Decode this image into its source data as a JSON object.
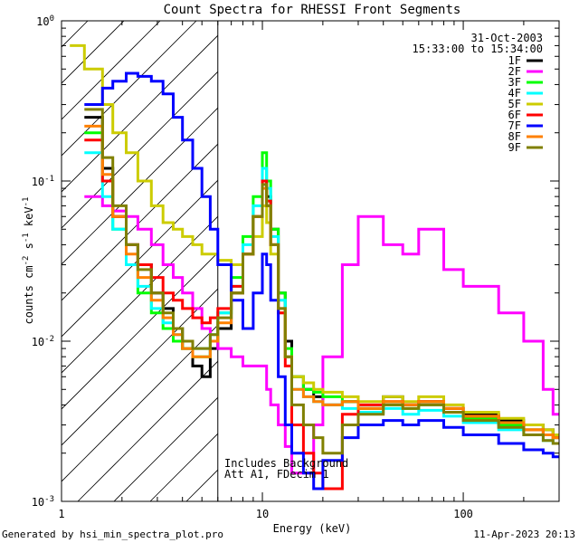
{
  "chart_data": {
    "type": "line",
    "title": "Count Spectra for RHESSI Front Segments",
    "xlabel": "Energy (keV)",
    "ylabel_parts": [
      "counts cm",
      "-2",
      " s",
      "-1",
      " keV",
      "-1"
    ],
    "xscale": "log",
    "yscale": "log",
    "xlim": [
      1,
      300
    ],
    "ylim": [
      0.001,
      1
    ],
    "x_ticks": [
      {
        "value": 1,
        "label": "1"
      },
      {
        "value": 10,
        "label": "10"
      },
      {
        "value": 100,
        "label": "100"
      }
    ],
    "y_ticks": [
      {
        "value": 1,
        "label": "10",
        "exp": "0"
      },
      {
        "value": 0.1,
        "label": "10",
        "exp": "-1"
      },
      {
        "value": 0.01,
        "label": "10",
        "exp": "-2"
      },
      {
        "value": 0.001,
        "label": "10",
        "exp": "-3"
      }
    ],
    "hatch_region": [
      1,
      6
    ],
    "date": "31-Oct-2003",
    "time_range": "15:33:00 to 15:34:00",
    "annotations": [
      "Includes Background",
      "Att A1, FDecim 1"
    ],
    "series": [
      {
        "name": "1F",
        "color": "#000000",
        "x": [
          1.3,
          1.6,
          1.8,
          2.1,
          2.4,
          2.8,
          3.2,
          3.6,
          4.0,
          4.5,
          5.0,
          5.5,
          6.0,
          7.0,
          8.0,
          9.0,
          10.0,
          10.5,
          11.0,
          12.0,
          13.0,
          14.0,
          16.0,
          18.0,
          20.0,
          25.0,
          30.0,
          40.0,
          50.0,
          60.0,
          80.0,
          100.0,
          150.0,
          200.0,
          250.0,
          280.0
        ],
        "y": [
          0.25,
          0.12,
          0.06,
          0.04,
          0.03,
          0.02,
          0.016,
          0.012,
          0.009,
          0.007,
          0.006,
          0.009,
          0.012,
          0.02,
          0.035,
          0.06,
          0.1,
          0.08,
          0.05,
          0.02,
          0.01,
          0.006,
          0.005,
          0.0045,
          0.004,
          0.0042,
          0.0038,
          0.0045,
          0.004,
          0.0042,
          0.0038,
          0.0035,
          0.0032,
          0.003,
          0.0028,
          0.0026
        ]
      },
      {
        "name": "2F",
        "color": "#ff00ff",
        "x": [
          1.3,
          1.6,
          1.8,
          2.1,
          2.4,
          2.8,
          3.2,
          3.6,
          4.0,
          4.5,
          5.0,
          5.5,
          6.0,
          7.0,
          8.0,
          9.0,
          10.0,
          10.5,
          11.0,
          12.0,
          13.0,
          14.0,
          16.0,
          18.0,
          20.0,
          25.0,
          30.0,
          40.0,
          50.0,
          60.0,
          80.0,
          100.0,
          150.0,
          200.0,
          250.0,
          280.0
        ],
        "y": [
          0.08,
          0.07,
          0.065,
          0.06,
          0.05,
          0.04,
          0.03,
          0.025,
          0.02,
          0.016,
          0.012,
          0.01,
          0.009,
          0.008,
          0.007,
          0.007,
          0.007,
          0.005,
          0.004,
          0.003,
          0.0022,
          0.0015,
          0.0015,
          0.003,
          0.008,
          0.03,
          0.06,
          0.04,
          0.035,
          0.05,
          0.028,
          0.022,
          0.015,
          0.01,
          0.005,
          0.0035
        ]
      },
      {
        "name": "3F",
        "color": "#00ff00",
        "x": [
          1.3,
          1.6,
          1.8,
          2.1,
          2.4,
          2.8,
          3.2,
          3.6,
          4.0,
          4.5,
          5.0,
          5.5,
          6.0,
          7.0,
          8.0,
          9.0,
          10.0,
          10.5,
          11.0,
          12.0,
          13.0,
          14.0,
          16.0,
          18.0,
          20.0,
          25.0,
          30.0,
          40.0,
          50.0,
          60.0,
          80.0,
          100.0,
          150.0,
          200.0,
          250.0,
          280.0
        ],
        "y": [
          0.2,
          0.1,
          0.05,
          0.03,
          0.02,
          0.015,
          0.012,
          0.01,
          0.009,
          0.008,
          0.008,
          0.01,
          0.015,
          0.025,
          0.045,
          0.08,
          0.15,
          0.1,
          0.05,
          0.02,
          0.009,
          0.006,
          0.005,
          0.0048,
          0.0045,
          0.0042,
          0.0038,
          0.004,
          0.0038,
          0.004,
          0.0036,
          0.0033,
          0.003,
          0.0028,
          0.0026,
          0.0025
        ]
      },
      {
        "name": "4F",
        "color": "#00ffff",
        "x": [
          1.3,
          1.6,
          1.8,
          2.1,
          2.4,
          2.8,
          3.2,
          3.6,
          4.0,
          4.5,
          5.0,
          5.5,
          6.0,
          7.0,
          8.0,
          9.0,
          10.0,
          10.5,
          11.0,
          12.0,
          13.0,
          14.0,
          16.0,
          18.0,
          20.0,
          25.0,
          30.0,
          40.0,
          50.0,
          60.0,
          80.0,
          100.0,
          150.0,
          200.0,
          250.0,
          280.0
        ],
        "y": [
          0.15,
          0.08,
          0.05,
          0.03,
          0.022,
          0.016,
          0.013,
          0.011,
          0.01,
          0.009,
          0.009,
          0.011,
          0.015,
          0.022,
          0.04,
          0.07,
          0.12,
          0.09,
          0.045,
          0.018,
          0.008,
          0.005,
          0.0045,
          0.0042,
          0.004,
          0.0038,
          0.0036,
          0.0038,
          0.0035,
          0.0037,
          0.0034,
          0.0031,
          0.0028,
          0.0026,
          0.0024,
          0.0023
        ]
      },
      {
        "name": "5F",
        "color": "#cccc00",
        "x": [
          1.1,
          1.3,
          1.6,
          1.8,
          2.1,
          2.4,
          2.8,
          3.2,
          3.6,
          4.0,
          4.5,
          5.0,
          5.5,
          6.0,
          7.0,
          8.0,
          9.0,
          10.0,
          10.5,
          11.0,
          12.0,
          13.0,
          14.0,
          16.0,
          18.0,
          20.0,
          25.0,
          30.0,
          40.0,
          50.0,
          60.0,
          80.0,
          100.0,
          150.0,
          200.0,
          250.0,
          280.0
        ],
        "y": [
          0.7,
          0.5,
          0.3,
          0.2,
          0.15,
          0.1,
          0.07,
          0.055,
          0.05,
          0.045,
          0.04,
          0.035,
          0.035,
          0.032,
          0.03,
          0.035,
          0.045,
          0.07,
          0.055,
          0.035,
          0.015,
          0.008,
          0.006,
          0.0055,
          0.005,
          0.0048,
          0.0045,
          0.0042,
          0.0045,
          0.0042,
          0.0045,
          0.004,
          0.0036,
          0.0033,
          0.003,
          0.0028,
          0.0026
        ]
      },
      {
        "name": "6F",
        "color": "#ff0000",
        "x": [
          1.3,
          1.6,
          1.8,
          2.1,
          2.4,
          2.8,
          3.2,
          3.6,
          4.0,
          4.5,
          5.0,
          5.5,
          6.0,
          7.0,
          8.0,
          9.0,
          10.0,
          10.5,
          11.0,
          12.0,
          13.0,
          14.0,
          16.0,
          18.0,
          20.0,
          25.0,
          30.0,
          40.0,
          50.0,
          60.0,
          80.0,
          100.0,
          150.0,
          200.0,
          250.0,
          280.0
        ],
        "y": [
          0.18,
          0.1,
          0.06,
          0.04,
          0.03,
          0.025,
          0.02,
          0.018,
          0.016,
          0.014,
          0.013,
          0.014,
          0.016,
          0.022,
          0.035,
          0.06,
          0.1,
          0.075,
          0.04,
          0.015,
          0.007,
          0.003,
          0.002,
          0.0015,
          0.0012,
          0.0035,
          0.004,
          0.0042,
          0.004,
          0.0042,
          0.0038,
          0.0034,
          0.0031,
          0.0028,
          0.0026,
          0.0025
        ]
      },
      {
        "name": "7F",
        "color": "#0000ff",
        "x": [
          1.3,
          1.6,
          1.8,
          2.1,
          2.4,
          2.8,
          3.2,
          3.6,
          4.0,
          4.5,
          5.0,
          5.5,
          6.0,
          7.0,
          8.0,
          9.0,
          10.0,
          10.5,
          11.0,
          12.0,
          13.0,
          14.0,
          16.0,
          18.0,
          20.0,
          25.0,
          30.0,
          40.0,
          50.0,
          60.0,
          80.0,
          100.0,
          150.0,
          200.0,
          250.0,
          280.0
        ],
        "y": [
          0.3,
          0.38,
          0.42,
          0.47,
          0.45,
          0.42,
          0.35,
          0.25,
          0.18,
          0.12,
          0.08,
          0.05,
          0.03,
          0.018,
          0.012,
          0.02,
          0.035,
          0.03,
          0.018,
          0.006,
          0.003,
          0.002,
          0.0015,
          0.0012,
          0.0018,
          0.0025,
          0.003,
          0.0032,
          0.003,
          0.0032,
          0.0029,
          0.0026,
          0.0023,
          0.0021,
          0.002,
          0.0019
        ]
      },
      {
        "name": "8F",
        "color": "#ff8000",
        "x": [
          1.3,
          1.6,
          1.8,
          2.1,
          2.4,
          2.8,
          3.2,
          3.6,
          4.0,
          4.5,
          5.0,
          5.5,
          6.0,
          7.0,
          8.0,
          9.0,
          10.0,
          10.5,
          11.0,
          12.0,
          13.0,
          14.0,
          16.0,
          18.0,
          20.0,
          25.0,
          30.0,
          40.0,
          50.0,
          60.0,
          80.0,
          100.0,
          150.0,
          200.0,
          250.0,
          280.0
        ],
        "y": [
          0.22,
          0.11,
          0.06,
          0.035,
          0.025,
          0.018,
          0.014,
          0.011,
          0.009,
          0.008,
          0.008,
          0.01,
          0.013,
          0.02,
          0.035,
          0.06,
          0.09,
          0.07,
          0.04,
          0.016,
          0.008,
          0.005,
          0.0045,
          0.0042,
          0.004,
          0.0042,
          0.0038,
          0.0042,
          0.004,
          0.0042,
          0.0038,
          0.0034,
          0.0031,
          0.0028,
          0.0026,
          0.0025
        ]
      },
      {
        "name": "9F",
        "color": "#808000",
        "x": [
          1.3,
          1.6,
          1.8,
          2.1,
          2.4,
          2.8,
          3.2,
          3.6,
          4.0,
          4.5,
          5.0,
          5.5,
          6.0,
          7.0,
          8.0,
          9.0,
          10.0,
          10.5,
          11.0,
          12.0,
          13.0,
          14.0,
          16.0,
          18.0,
          20.0,
          25.0,
          30.0,
          40.0,
          50.0,
          60.0,
          80.0,
          100.0,
          150.0,
          200.0,
          250.0,
          280.0
        ],
        "y": [
          0.28,
          0.14,
          0.07,
          0.04,
          0.028,
          0.02,
          0.015,
          0.012,
          0.01,
          0.009,
          0.009,
          0.011,
          0.014,
          0.02,
          0.035,
          0.06,
          0.095,
          0.07,
          0.04,
          0.016,
          0.008,
          0.004,
          0.003,
          0.0025,
          0.002,
          0.003,
          0.0035,
          0.004,
          0.0038,
          0.004,
          0.0036,
          0.0032,
          0.0029,
          0.0026,
          0.0024,
          0.0023
        ]
      }
    ]
  },
  "footer": {
    "generated_by": "Generated by hsi_min_spectra_plot.pro",
    "timestamp": "11-Apr-2023 20:13"
  }
}
